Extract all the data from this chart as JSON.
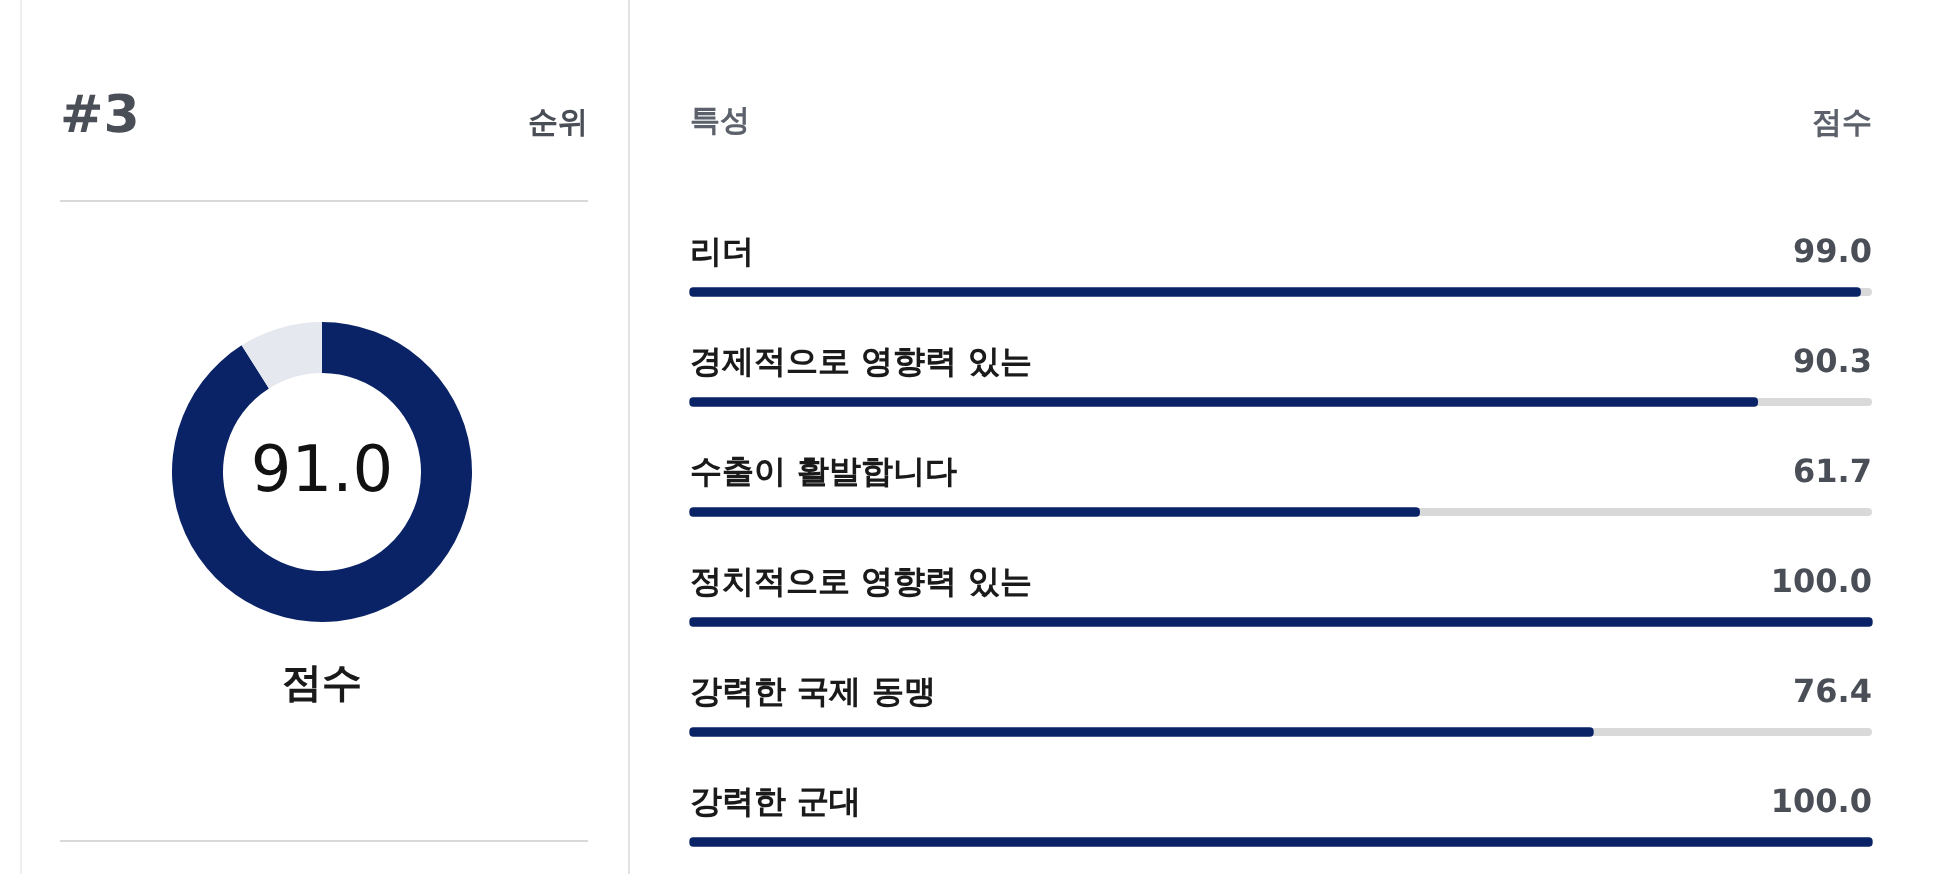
{
  "chart_data": [
    {
      "type": "donut",
      "title": "점수",
      "annotations": [
        "#3",
        "순위"
      ],
      "categories": [
        null,
        null
      ],
      "values": [
        91.0,
        9.0
      ],
      "colors": [
        "#0a2366",
        "#e5e8ee"
      ],
      "value_labels": [
        "91.0",
        null
      ]
    },
    {
      "type": "bar",
      "orientation": "horizontal",
      "ylabel": "특성",
      "xlabel": "점수",
      "categories": [
        "리더",
        "경제적으로 영향력 있는",
        "수출이 활발합니다",
        "정치적으로 영향력 있는",
        "강력한 국제 동맹",
        "강력한 군대"
      ],
      "values": [
        99.0,
        90.3,
        61.7,
        100.0,
        76.4,
        100.0
      ],
      "color": "#0a2366",
      "xlim": [
        0,
        100
      ],
      "value_labels": [
        "99.0",
        "90.3",
        "61.7",
        "100.0",
        "76.4",
        "100.0"
      ],
      "tick_labels": "y"
    }
  ]
}
